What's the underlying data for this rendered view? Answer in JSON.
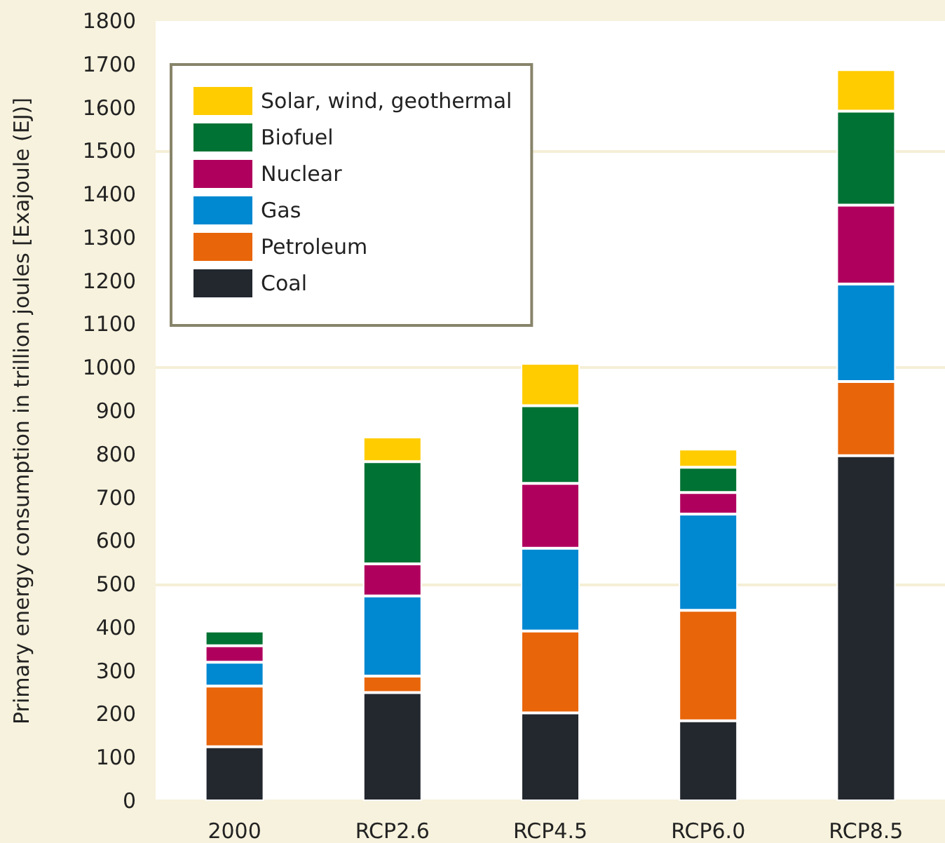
{
  "chart_data": {
    "type": "bar",
    "ylabel": "Primary energy consumption in trillion joules [Exajoule (EJ)]",
    "categories": [
      "2000",
      "RCP2.6",
      "RCP4.5",
      "RCP6.0",
      "RCP8.5"
    ],
    "stacked": true,
    "series": [
      {
        "name": "Coal",
        "color": "#23272e",
        "values": [
          125,
          250,
          203,
          185,
          797
        ]
      },
      {
        "name": "Petroleum",
        "color": "#e8650a",
        "values": [
          140,
          38,
          189,
          255,
          171
        ]
      },
      {
        "name": "Gas",
        "color": "#0088d1",
        "values": [
          55,
          185,
          191,
          222,
          225
        ]
      },
      {
        "name": "Nuclear",
        "color": "#b0005e",
        "values": [
          38,
          74,
          150,
          50,
          182
        ]
      },
      {
        "name": "Biofuel",
        "color": "#007233",
        "values": [
          34,
          236,
          179,
          58,
          217
        ]
      },
      {
        "name": "Solar, wind, geothermal",
        "color": "#ffcc00",
        "values": [
          null,
          57,
          98,
          42,
          96
        ]
      }
    ],
    "ylim": [
      0,
      1800
    ],
    "yticks": [
      0,
      100,
      200,
      300,
      400,
      500,
      600,
      700,
      800,
      900,
      1000,
      1100,
      1200,
      1300,
      1400,
      1500,
      1600,
      1700,
      1800
    ],
    "ref_lines": [
      {
        "axis": "y",
        "value": 500,
        "color": "#f5efd6"
      },
      {
        "axis": "y",
        "value": 1000,
        "color": "#f5efd6"
      },
      {
        "axis": "y",
        "value": 1500,
        "color": "#f5efd6"
      }
    ],
    "grid": false,
    "legend": "top left"
  }
}
